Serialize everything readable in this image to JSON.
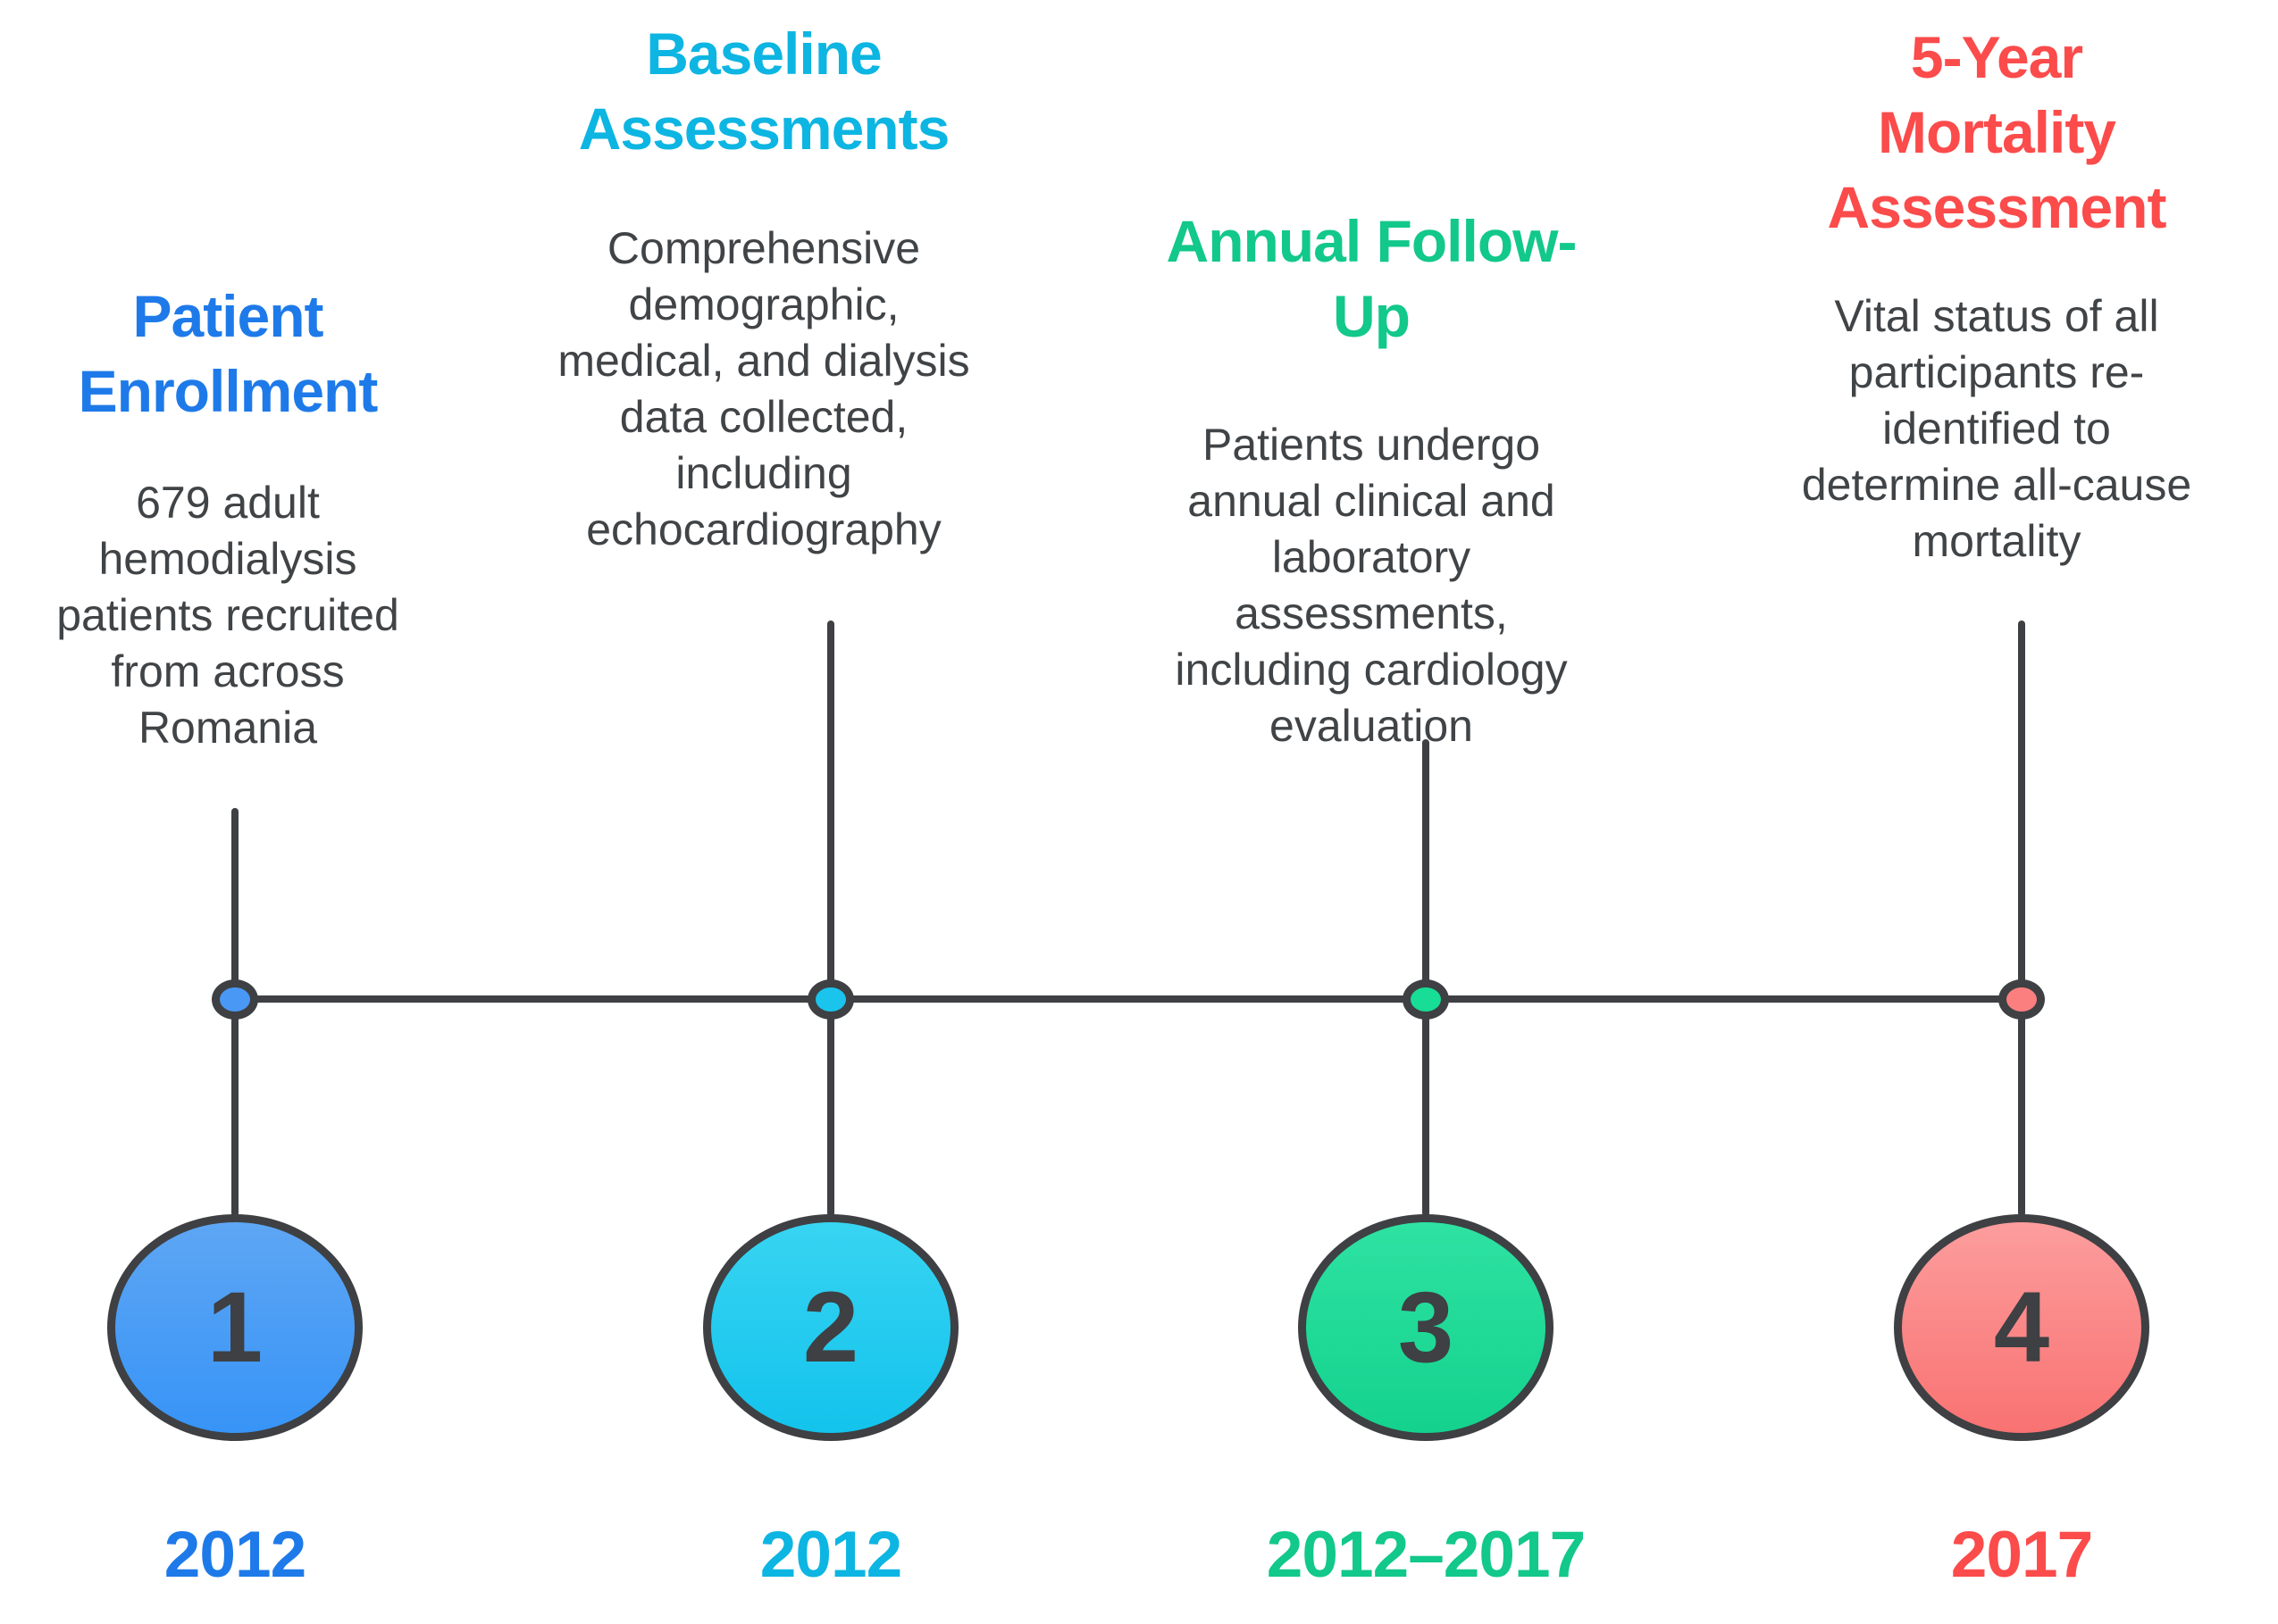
{
  "page": {
    "background": "#ffffff",
    "line_color": "#3e4043",
    "description_text_color": "#404447"
  },
  "timeline": {
    "type": "timeline-diagram",
    "milestones": [
      {
        "number": "1",
        "title": "Patient\nEnrollment",
        "description": "679 adult\nhemodialysis\npatients recruited\nfrom across\nRomania",
        "year": "2012",
        "colors": {
          "accent": "#1e7ae9",
          "dot": "#4a98f5",
          "circle_top": "#5ea6f4",
          "circle_bottom": "#3794f6"
        }
      },
      {
        "number": "2",
        "title": "Baseline\nAssessments",
        "description": "Comprehensive\ndemographic,\nmedical, and dialysis\ndata collected,\nincluding\nechocardiography",
        "year": "2012",
        "colors": {
          "accent": "#0db5e2",
          "dot": "#1ac4ec",
          "circle_top": "#38d4f2",
          "circle_bottom": "#13c3ec"
        }
      },
      {
        "number": "3",
        "title": "Annual Follow-\nUp",
        "description": "Patients undergo\nannual clinical and\nlaboratory\nassessments,\nincluding cardiology\nevaluation",
        "year": "2012–2017",
        "colors": {
          "accent": "#12c88a",
          "dot": "#17dd96",
          "circle_top": "#2ee2a2",
          "circle_bottom": "#14d28e"
        }
      },
      {
        "number": "4",
        "title": "5-Year\nMortality\nAssessment",
        "description": "Vital status of all\nparticipants re-\nidentified to\ndetermine all-cause\nmortality",
        "year": "2017",
        "colors": {
          "accent": "#fb4b4b",
          "dot": "#fc7f7f",
          "circle_top": "#fc9d9d",
          "circle_bottom": "#f97272"
        }
      }
    ]
  }
}
